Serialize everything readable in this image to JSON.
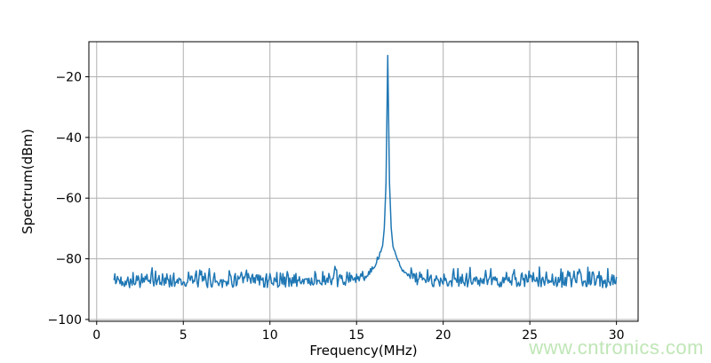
{
  "watermark": {
    "text": "www.cntronics.com",
    "color": "#bfe6b6"
  },
  "chart_data": {
    "type": "line",
    "title": "",
    "xlabel": "Frequency(MHz)",
    "ylabel": "Spectrum(dBm)",
    "xlim": [
      -0.45,
      31.25
    ],
    "ylim": [
      -100.6,
      -8.45
    ],
    "x_ticks": [
      0,
      5,
      10,
      15,
      20,
      25,
      30
    ],
    "x_tick_labels": [
      "0",
      "5",
      "10",
      "15",
      "20",
      "25",
      "30"
    ],
    "y_ticks": [
      -100,
      -80,
      -60,
      -40,
      -20
    ],
    "y_tick_labels": [
      "−100",
      "−80",
      "−60",
      "−40",
      "−20"
    ],
    "grid": true,
    "grid_color": "#b0b0b0",
    "spine_color": "#000000",
    "text_color": "#000000",
    "line_color": "#1f77b4",
    "background": "#ffffff",
    "legend": "none",
    "series": [
      {
        "name": "spectrum",
        "freq_start_mhz": 1.0,
        "freq_stop_mhz": 30.0,
        "freq_step_mhz": 0.05,
        "noise_floor_dbm": -90,
        "noise_spread_db": 7,
        "noise_seed": 42,
        "peak": {
          "freq_mhz": 16.8,
          "level_dbm": -13
        },
        "skirt_profile_offset_mhz_vs_dbm": [
          [
            0.0,
            -13
          ],
          [
            0.05,
            -34
          ],
          [
            0.1,
            -55
          ],
          [
            0.2,
            -70
          ],
          [
            0.3,
            -76
          ],
          [
            0.5,
            -80
          ],
          [
            0.8,
            -84
          ],
          [
            1.2,
            -87
          ],
          [
            1.7,
            -89.5
          ],
          [
            3.0,
            -90.5
          ]
        ]
      }
    ]
  }
}
